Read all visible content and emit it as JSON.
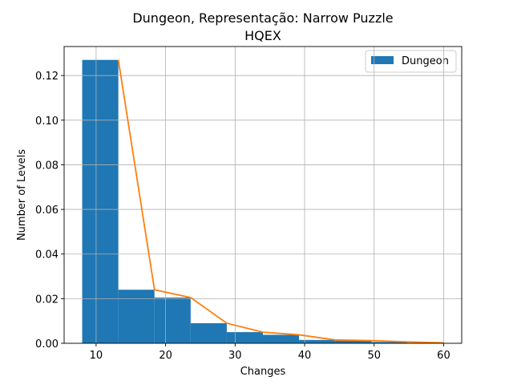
{
  "chart_data": {
    "type": "bar",
    "title_line1": "Dungeon, Representação: Narrow Puzzle",
    "title_line2": "HQEX",
    "xlabel": "Changes",
    "ylabel": "Number of Levels",
    "xlim": [
      5.4,
      62.6
    ],
    "ylim": [
      0,
      0.133
    ],
    "xticks": [
      10,
      20,
      30,
      40,
      50,
      60
    ],
    "yticks": [
      0.0,
      0.02,
      0.04,
      0.06,
      0.08,
      0.1,
      0.12
    ],
    "ytick_labels": [
      "0.00",
      "0.02",
      "0.04",
      "0.06",
      "0.08",
      "0.10",
      "0.12"
    ],
    "grid": true,
    "legend_position": "top-right",
    "colors": {
      "bars": "#1f77b4",
      "line": "#ff7f0e",
      "grid": "#b0b0b0"
    },
    "histogram": {
      "name": "Dungeon",
      "bins": [
        {
          "x0": 8.0,
          "x1": 13.2,
          "value": 0.127
        },
        {
          "x0": 13.2,
          "x1": 18.4,
          "value": 0.024
        },
        {
          "x0": 18.4,
          "x1": 23.6,
          "value": 0.0205
        },
        {
          "x0": 23.6,
          "x1": 28.8,
          "value": 0.009
        },
        {
          "x0": 28.8,
          "x1": 34.0,
          "value": 0.005
        },
        {
          "x0": 34.0,
          "x1": 39.2,
          "value": 0.0038
        },
        {
          "x0": 39.2,
          "x1": 44.4,
          "value": 0.0015
        },
        {
          "x0": 44.4,
          "x1": 49.6,
          "value": 0.0012
        },
        {
          "x0": 49.6,
          "x1": 54.8,
          "value": 0.0006
        },
        {
          "x0": 54.8,
          "x1": 60.0,
          "value": 0.0002
        }
      ]
    },
    "line": {
      "x": [
        13.2,
        18.4,
        23.6,
        28.8,
        34.0,
        39.2,
        44.4,
        49.6,
        54.8,
        60.0
      ],
      "y": [
        0.127,
        0.024,
        0.0205,
        0.009,
        0.005,
        0.0038,
        0.0015,
        0.0012,
        0.0006,
        0.0002
      ]
    }
  }
}
